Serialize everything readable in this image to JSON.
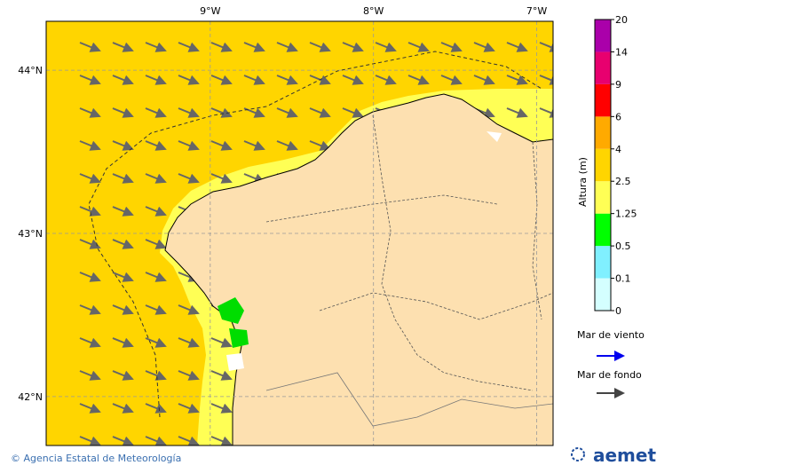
{
  "map": {
    "lonlim": [
      -10.005,
      -6.9
    ],
    "latlim": [
      41.7,
      44.3
    ],
    "lonticks": [
      {
        "value": -9,
        "label": "9°W"
      },
      {
        "value": -8,
        "label": "8°W"
      },
      {
        "value": -7,
        "label": "7°W"
      }
    ],
    "latticks": [
      {
        "value": 44,
        "label": "44°N"
      },
      {
        "value": 43,
        "label": "43°N"
      },
      {
        "value": 42,
        "label": "42°N"
      }
    ]
  },
  "colorbar": {
    "label": "Altura (m)",
    "levels": [
      0,
      0.1,
      0.5,
      1.25,
      2.5,
      4,
      6,
      9,
      14,
      20
    ],
    "colors": [
      "#d4ffff",
      "#80f0ff",
      "#00ff00",
      "#ffff55",
      "#ffd500",
      "#ffaa00",
      "#ff0000",
      "#e8006f",
      "#aa00aa"
    ]
  },
  "legend": {
    "wind_sea": "Mar de viento",
    "swell": "Mar de fondo"
  },
  "footer": {
    "credit": "© Agencia Estatal de Meteorología",
    "logo": "aemet"
  }
}
